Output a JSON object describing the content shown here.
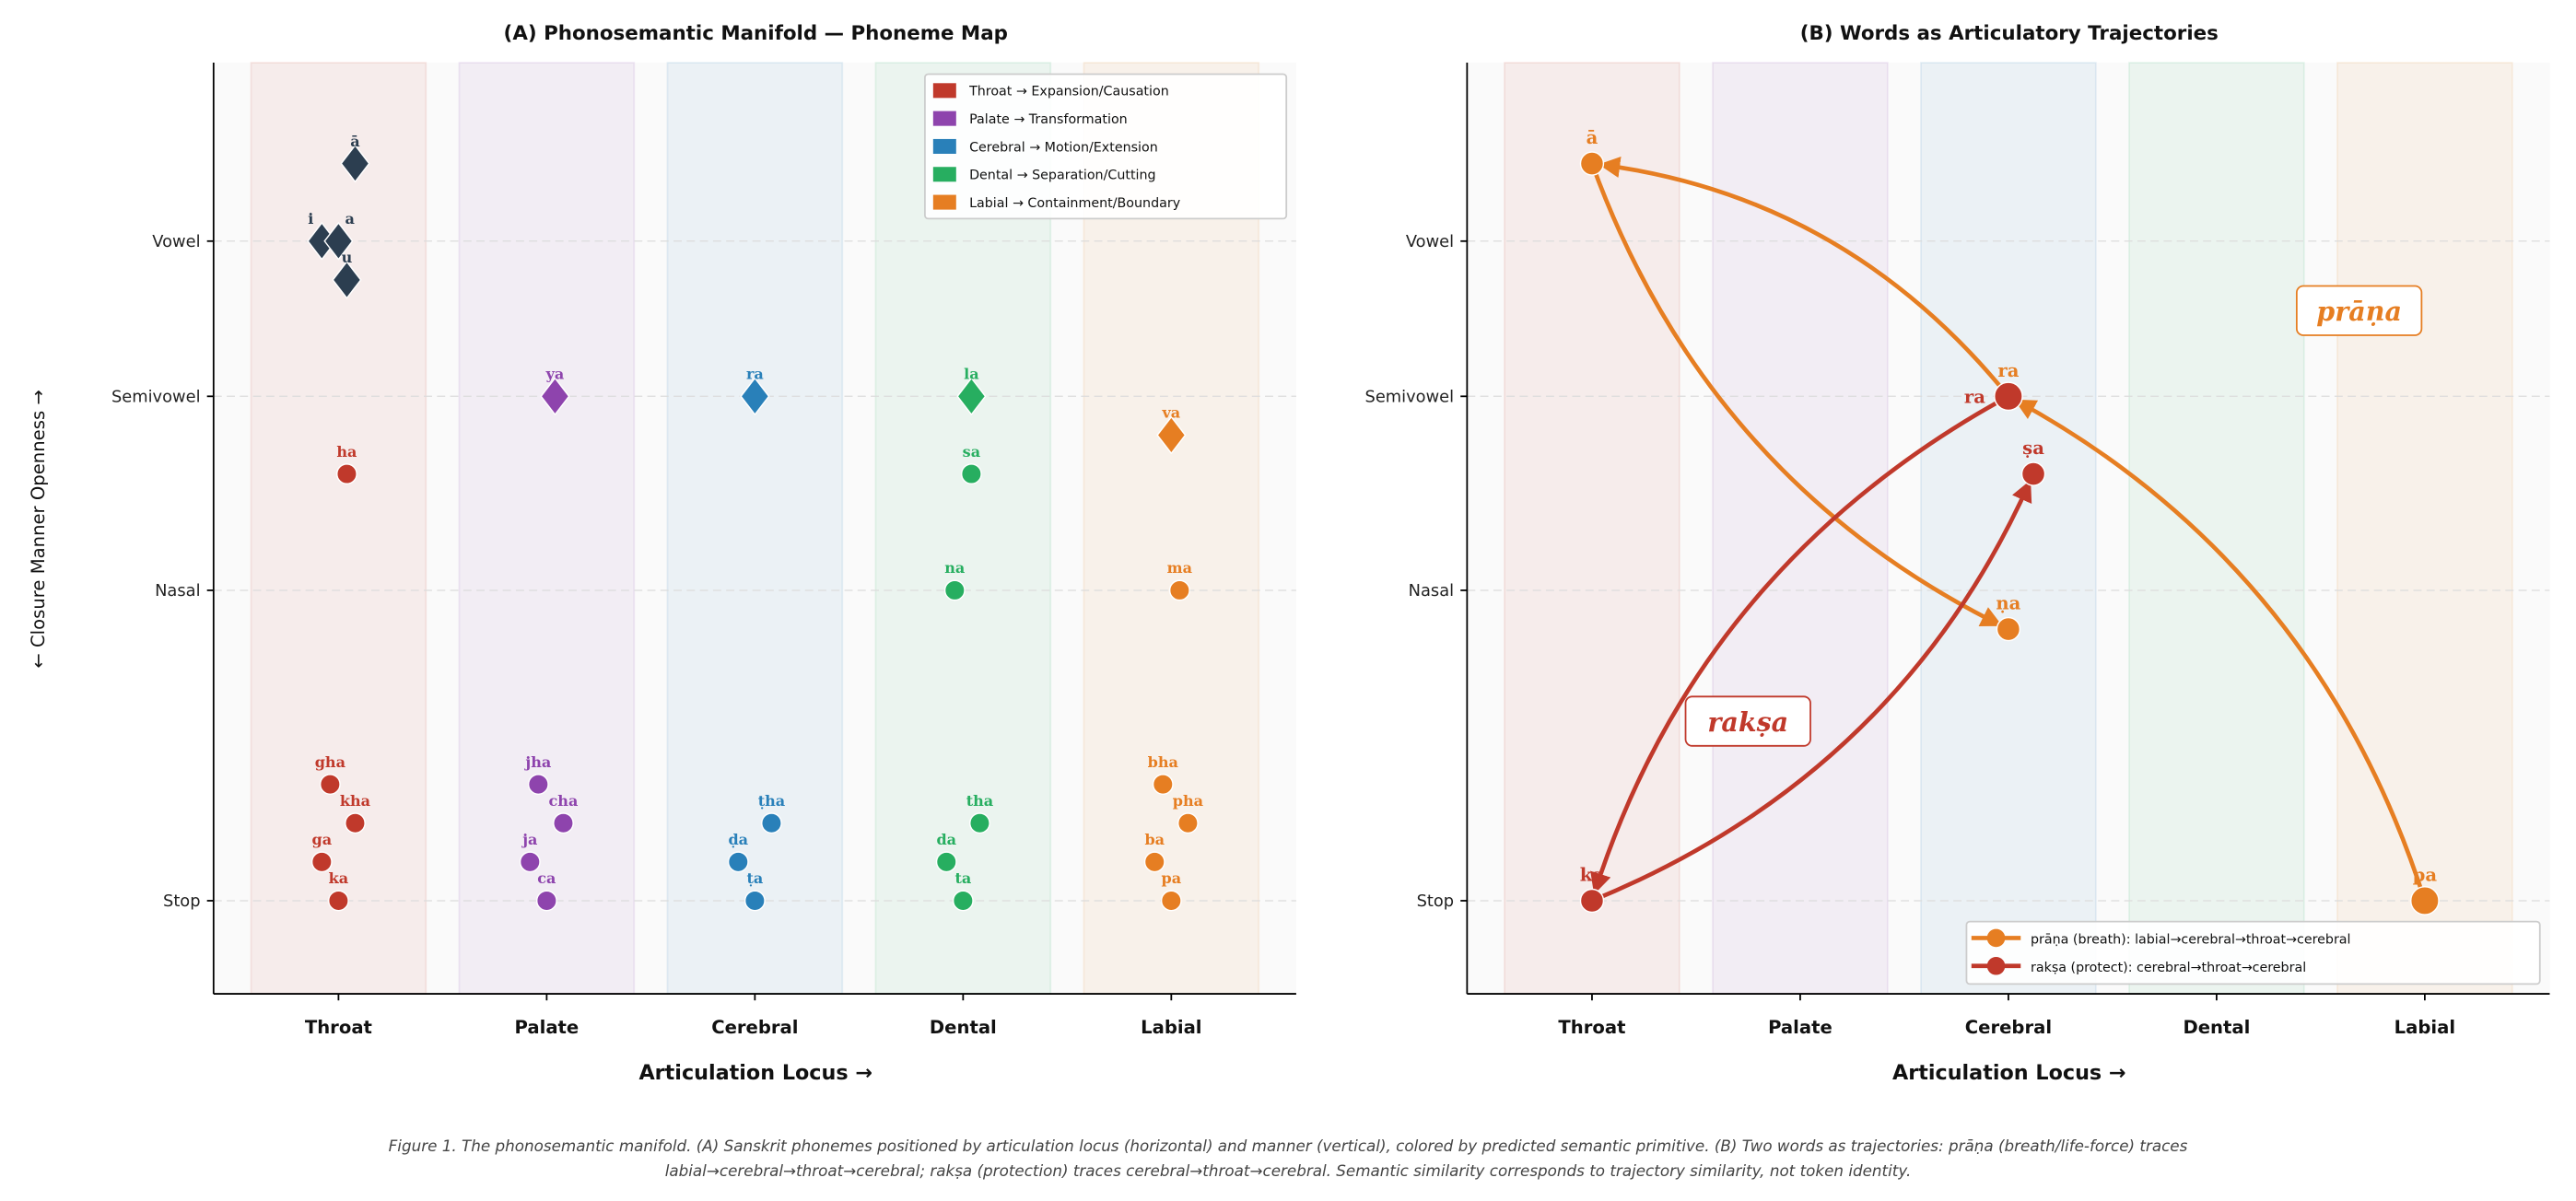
{
  "colors": {
    "throat": "#c0392b",
    "palate": "#8e44ad",
    "cerebral": "#2980b9",
    "dental": "#27ae60",
    "labial": "#e67e22",
    "vowel": "#2c3e50"
  },
  "caption": [
    "Figure 1. The phonosemantic manifold. (A) Sanskrit phonemes positioned by articulation locus (horizontal) and manner (vertical), colored by predicted semantic primitive. (B) Two words as trajectories: prāṇa (breath/life-force) traces",
    "labial→cerebral→throat→cerebral; rakṣa (protection) traces cerebral→throat→cerebral. Semantic similarity corresponds to trajectory similarity, not token identity."
  ],
  "chart_data": [
    {
      "type": "scatter",
      "title": "(A)  Phonosemantic Manifold — Phoneme Map",
      "xlabel": "Articulation Locus →",
      "ylabel": "← Closure      Manner      Openness →",
      "categories": [
        "Throat",
        "Palate",
        "Cerebral",
        "Dental",
        "Labial"
      ],
      "yticks": [
        {
          "label": "Stop",
          "value": 0
        },
        {
          "label": "Nasal",
          "value": 2
        },
        {
          "label": "Semivowel",
          "value": 3.25
        },
        {
          "label": "Vowel",
          "value": 4.25
        }
      ],
      "xlim": [
        -0.6,
        4.6
      ],
      "ylim": [
        -0.6,
        5.4
      ],
      "grid": "horizontal dashed",
      "legend_position": "top-right",
      "legend": [
        {
          "label": "Throat → Expansion/Causation",
          "group": "throat"
        },
        {
          "label": "Palate → Transformation",
          "group": "palate"
        },
        {
          "label": "Cerebral → Motion/Extension",
          "group": "cerebral"
        },
        {
          "label": "Dental → Separation/Cutting",
          "group": "dental"
        },
        {
          "label": "Labial → Containment/Boundary",
          "group": "labial"
        }
      ],
      "points": [
        {
          "label": "ā",
          "x": 0.08,
          "y": 4.75,
          "group": "vowel",
          "marker": "diamond"
        },
        {
          "label": "i",
          "x": -0.08,
          "y": 4.25,
          "group": "vowel",
          "marker": "diamond"
        },
        {
          "label": "a",
          "x": 0.0,
          "y": 4.25,
          "group": "vowel",
          "marker": "diamond"
        },
        {
          "label": "u",
          "x": 0.04,
          "y": 4.0,
          "group": "vowel",
          "marker": "diamond"
        },
        {
          "label": "ha",
          "x": 0.04,
          "y": 2.75,
          "group": "throat",
          "marker": "circle"
        },
        {
          "label": "ya",
          "x": 1.04,
          "y": 3.25,
          "group": "palate",
          "marker": "diamond"
        },
        {
          "label": "ra",
          "x": 2.0,
          "y": 3.25,
          "group": "cerebral",
          "marker": "diamond"
        },
        {
          "label": "la",
          "x": 3.04,
          "y": 3.25,
          "group": "dental",
          "marker": "diamond"
        },
        {
          "label": "sa",
          "x": 3.04,
          "y": 2.75,
          "group": "dental",
          "marker": "circle"
        },
        {
          "label": "na",
          "x": 2.96,
          "y": 2.0,
          "group": "dental",
          "marker": "circle"
        },
        {
          "label": "va",
          "x": 4.0,
          "y": 3.0,
          "group": "labial",
          "marker": "diamond"
        },
        {
          "label": "ma",
          "x": 4.04,
          "y": 2.0,
          "group": "labial",
          "marker": "circle"
        },
        {
          "label": "gha",
          "x": -0.04,
          "y": 0.75,
          "group": "throat",
          "marker": "circle"
        },
        {
          "label": "kha",
          "x": 0.08,
          "y": 0.5,
          "group": "throat",
          "marker": "circle"
        },
        {
          "label": "ga",
          "x": -0.08,
          "y": 0.25,
          "group": "throat",
          "marker": "circle"
        },
        {
          "label": "ka",
          "x": 0.0,
          "y": 0.0,
          "group": "throat",
          "marker": "circle"
        },
        {
          "label": "jha",
          "x": 0.96,
          "y": 0.75,
          "group": "palate",
          "marker": "circle"
        },
        {
          "label": "cha",
          "x": 1.08,
          "y": 0.5,
          "group": "palate",
          "marker": "circle"
        },
        {
          "label": "ja",
          "x": 0.92,
          "y": 0.25,
          "group": "palate",
          "marker": "circle"
        },
        {
          "label": "ca",
          "x": 1.0,
          "y": 0.0,
          "group": "palate",
          "marker": "circle"
        },
        {
          "label": "ṭha",
          "x": 2.08,
          "y": 0.5,
          "group": "cerebral",
          "marker": "circle"
        },
        {
          "label": "ḍa",
          "x": 1.92,
          "y": 0.25,
          "group": "cerebral",
          "marker": "circle"
        },
        {
          "label": "ṭa",
          "x": 2.0,
          "y": 0.0,
          "group": "cerebral",
          "marker": "circle"
        },
        {
          "label": "tha",
          "x": 3.08,
          "y": 0.5,
          "group": "dental",
          "marker": "circle"
        },
        {
          "label": "da",
          "x": 2.92,
          "y": 0.25,
          "group": "dental",
          "marker": "circle"
        },
        {
          "label": "ta",
          "x": 3.0,
          "y": 0.0,
          "group": "dental",
          "marker": "circle"
        },
        {
          "label": "bha",
          "x": 3.96,
          "y": 0.75,
          "group": "labial",
          "marker": "circle"
        },
        {
          "label": "pha",
          "x": 4.08,
          "y": 0.5,
          "group": "labial",
          "marker": "circle"
        },
        {
          "label": "ba",
          "x": 3.92,
          "y": 0.25,
          "group": "labial",
          "marker": "circle"
        },
        {
          "label": "pa",
          "x": 4.0,
          "y": 0.0,
          "group": "labial",
          "marker": "circle"
        }
      ]
    },
    {
      "type": "line",
      "title": "(B)  Words as Articulatory Trajectories",
      "xlabel": "Articulation Locus →",
      "categories": [
        "Throat",
        "Palate",
        "Cerebral",
        "Dental",
        "Labial"
      ],
      "yticks": [
        {
          "label": "Stop",
          "value": 0
        },
        {
          "label": "Nasal",
          "value": 2
        },
        {
          "label": "Semivowel",
          "value": 3.25
        },
        {
          "label": "Vowel",
          "value": 4.25
        }
      ],
      "xlim": [
        -0.6,
        4.6
      ],
      "ylim": [
        -0.6,
        5.4
      ],
      "legend_position": "bottom-right",
      "series": [
        {
          "name": "prāṇa (breath): labial→cerebral→throat→cerebral",
          "word": "prāṇa",
          "group": "labial",
          "points": [
            {
              "label": "pa",
              "x": 4,
              "y": 0
            },
            {
              "label": "ra",
              "x": 2,
              "y": 3.25
            },
            {
              "label": "ā",
              "x": 0,
              "y": 4.75
            },
            {
              "label": "ṇa",
              "x": 2,
              "y": 1.75
            }
          ]
        },
        {
          "name": "rakṣa (protect): cerebral→throat→cerebral",
          "word": "rakṣa",
          "group": "throat",
          "points": [
            {
              "label": "ra",
              "x": 2,
              "y": 3.25
            },
            {
              "label": "ka",
              "x": 0,
              "y": 0
            },
            {
              "label": "ṣa",
              "x": 2.12,
              "y": 2.75
            }
          ]
        }
      ]
    }
  ]
}
